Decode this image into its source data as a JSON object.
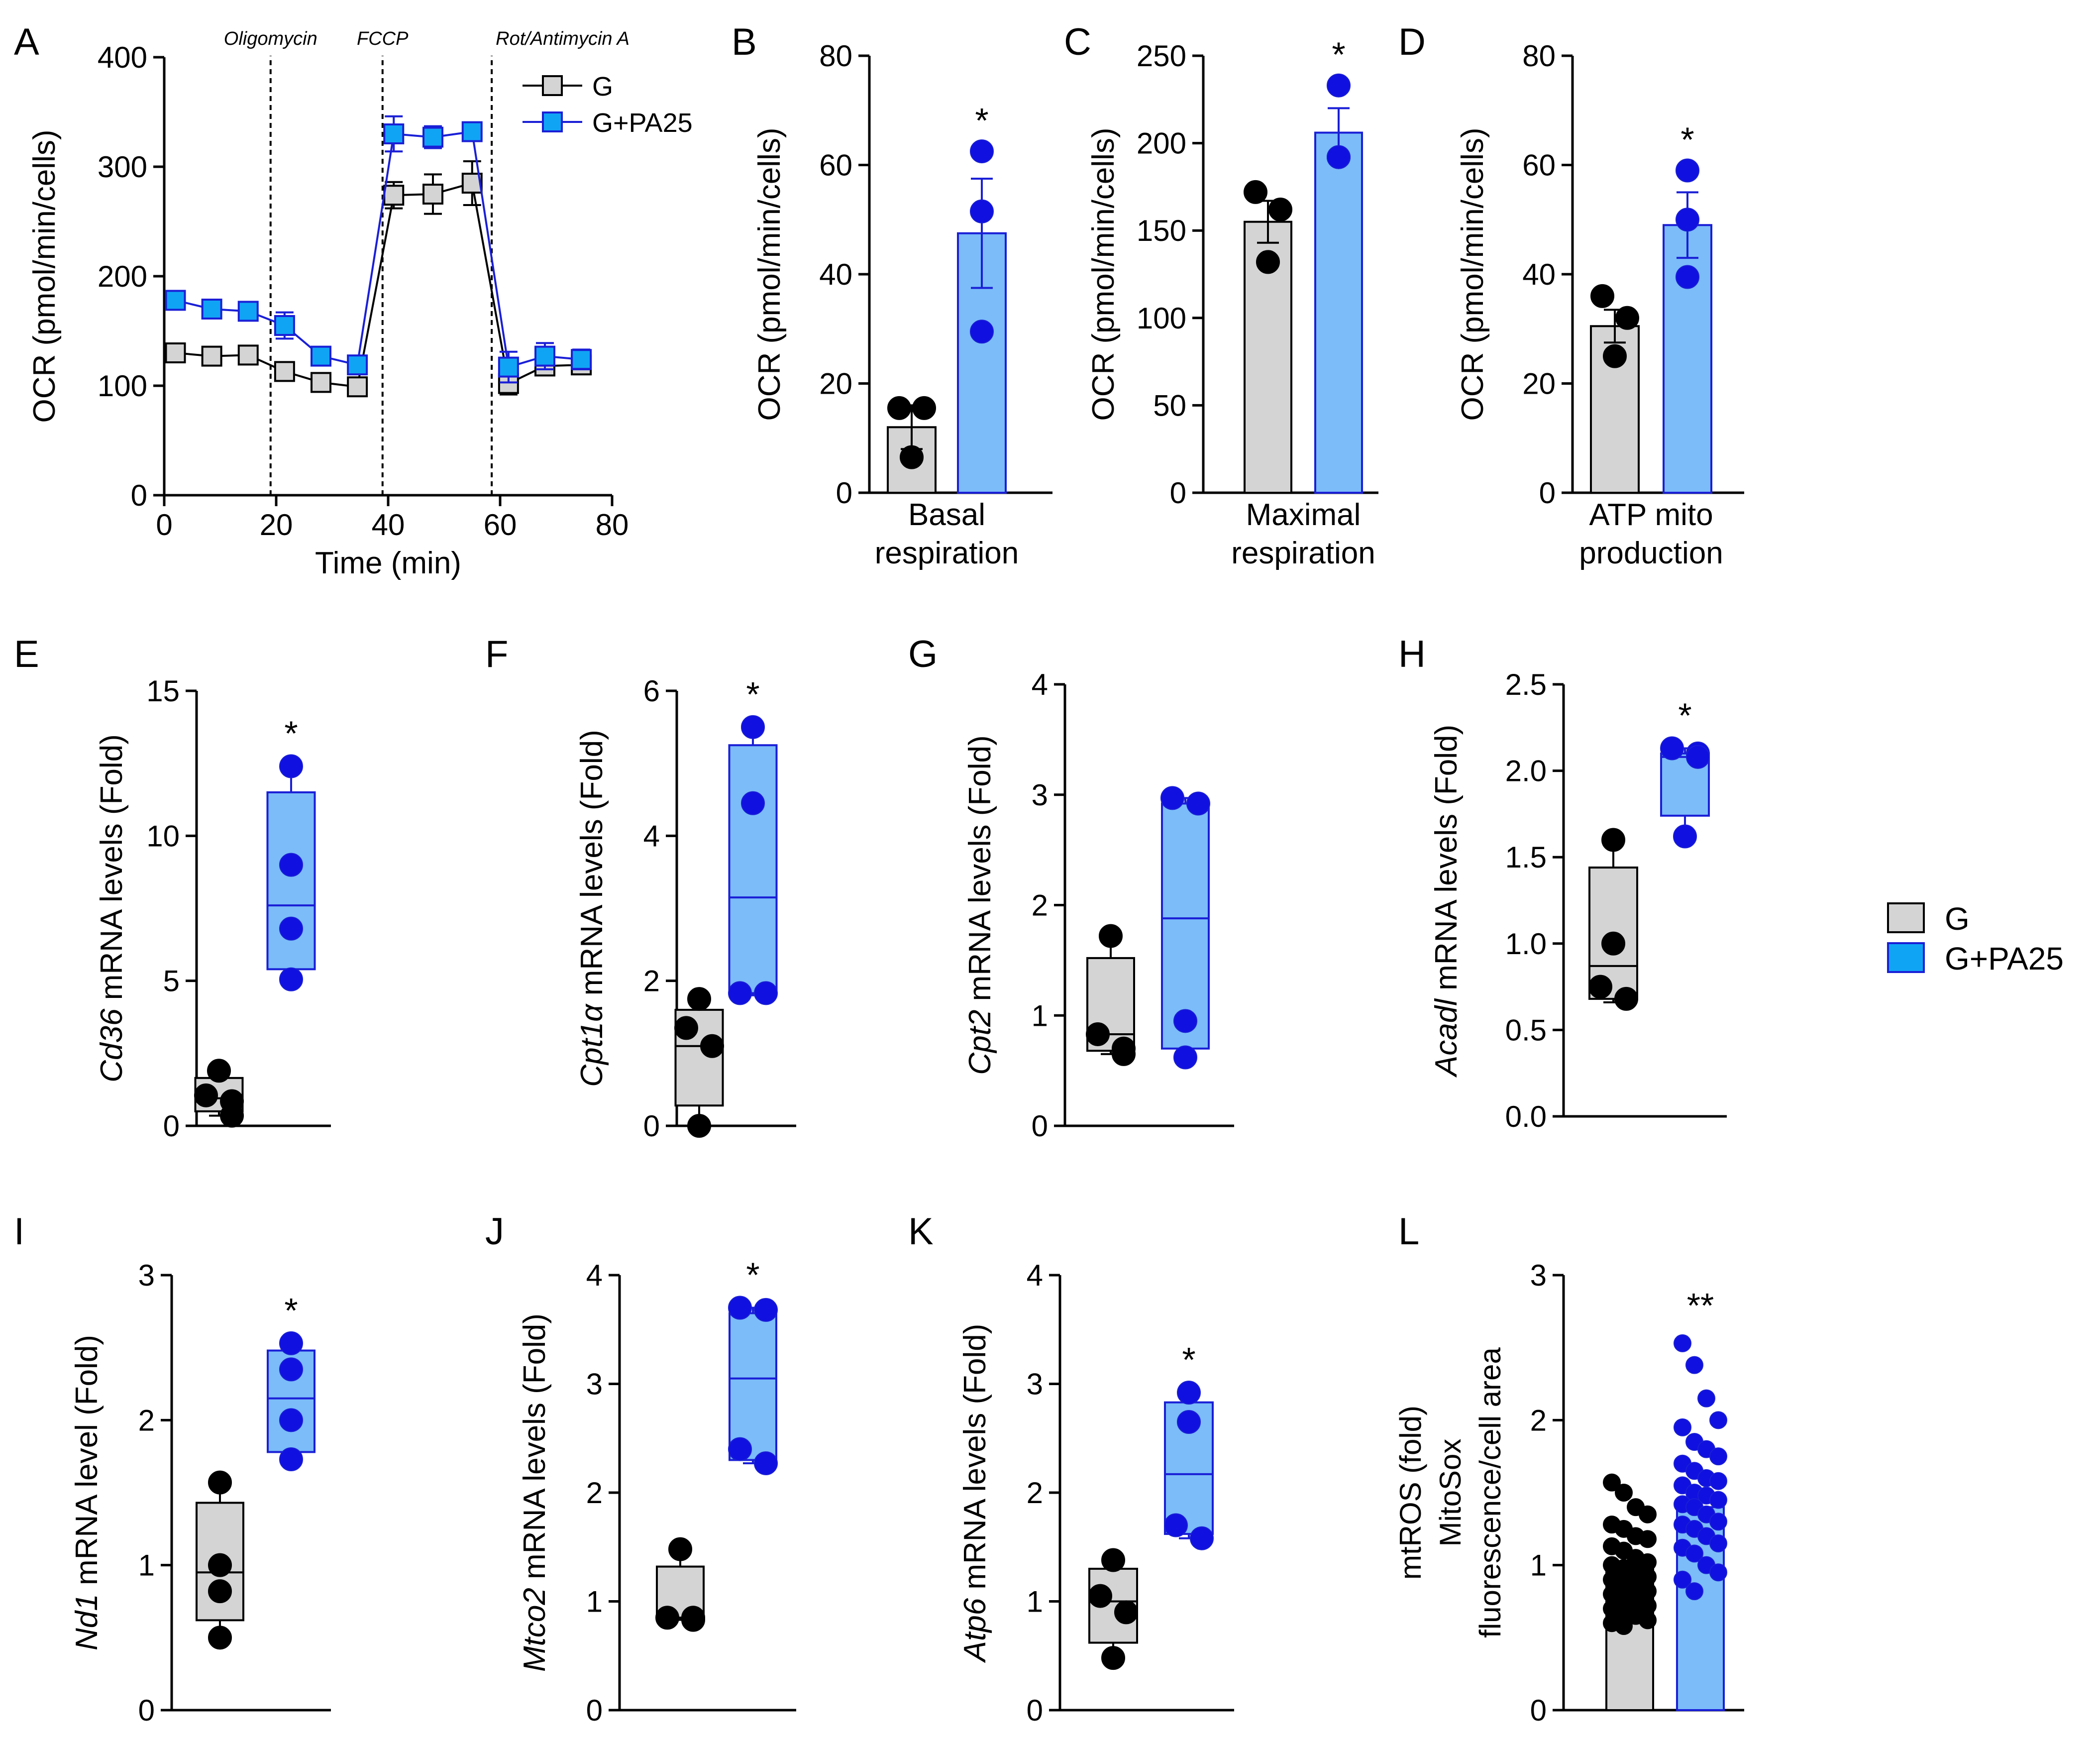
{
  "legend": {
    "g_label": "G",
    "pa_label": "G+PA25"
  },
  "colors": {
    "g_fill": "#d4d4d4",
    "pa_fill": "#7bbcf9",
    "pa_line": "#1a1fd6",
    "pa_marker": "#10a4f5",
    "pa_dot": "#1010e0",
    "black": "#000000"
  },
  "chart_data": [
    {
      "id": "A",
      "type": "line",
      "panel_letter": "A",
      "ylabel": "OCR (pmol/min/cells)",
      "xlabel": "Time (min)",
      "xlim": [
        0,
        80
      ],
      "ylim": [
        0,
        400
      ],
      "xticks": [
        0,
        20,
        40,
        60,
        80
      ],
      "yticks": [
        0,
        100,
        200,
        300,
        400
      ],
      "injections": [
        {
          "label": "Oligomycin",
          "x": 19
        },
        {
          "label": "FCCP",
          "x": 39
        },
        {
          "label": "Rot/Antimycin A",
          "x": 58.5
        }
      ],
      "series": [
        {
          "name": "G",
          "x": [
            2,
            8.5,
            15,
            21.5,
            28,
            34.5,
            41,
            48,
            55,
            61.5,
            68,
            74.5
          ],
          "values": [
            130,
            127,
            128,
            113,
            103,
            99,
            274,
            275,
            285,
            102,
            118,
            119
          ],
          "err": [
            4,
            4,
            4,
            5,
            5,
            5,
            12,
            18,
            20,
            10,
            8,
            8
          ]
        },
        {
          "name": "G+PA25",
          "x": [
            2,
            8.5,
            15,
            21.5,
            28,
            34.5,
            41,
            48,
            55,
            61.5,
            68,
            74.5
          ],
          "values": [
            178,
            170,
            168,
            155,
            127,
            119,
            330,
            327,
            332,
            117,
            127,
            124
          ],
          "err": [
            5,
            5,
            6,
            12,
            6,
            5,
            16,
            10,
            8,
            14,
            12,
            9
          ]
        }
      ]
    },
    {
      "id": "B",
      "type": "bar",
      "panel_letter": "B",
      "ylabel": "OCR (pmol/min/cells)",
      "xlabel_lines": [
        "Basal",
        "respiration"
      ],
      "ylim": [
        0,
        80
      ],
      "yticks": [
        0,
        20,
        40,
        60,
        80
      ],
      "significance": "*",
      "groups": [
        {
          "name": "G",
          "mean": 12,
          "err": 4,
          "points": [
            15.5,
            15.5,
            6.5
          ]
        },
        {
          "name": "G+PA25",
          "mean": 47.5,
          "err": 10,
          "points": [
            62.5,
            51.5,
            29.5
          ]
        }
      ]
    },
    {
      "id": "C",
      "type": "bar",
      "panel_letter": "C",
      "ylabel": "OCR (pmol/min/cells)",
      "xlabel_lines": [
        "Maximal",
        "respiration"
      ],
      "ylim": [
        0,
        250
      ],
      "yticks": [
        0,
        50,
        100,
        150,
        200,
        250
      ],
      "significance": "*",
      "groups": [
        {
          "name": "G",
          "mean": 155,
          "err": 12,
          "points": [
            172,
            162,
            132
          ]
        },
        {
          "name": "G+PA25",
          "mean": 206,
          "err": 14,
          "points": [
            233,
            192,
            192
          ]
        }
      ]
    },
    {
      "id": "D",
      "type": "bar",
      "panel_letter": "D",
      "ylabel": "OCR (pmol/min/cells)",
      "xlabel_lines": [
        "ATP mito",
        "production"
      ],
      "ylim": [
        0,
        80
      ],
      "yticks": [
        0,
        20,
        40,
        60,
        80
      ],
      "significance": "*",
      "groups": [
        {
          "name": "G",
          "mean": 30.5,
          "err": 3,
          "points": [
            36,
            32,
            25
          ]
        },
        {
          "name": "G+PA25",
          "mean": 49,
          "err": 6,
          "points": [
            59,
            50,
            39.5
          ]
        }
      ]
    },
    {
      "id": "E",
      "type": "box",
      "panel_letter": "E",
      "gene": "Cd36",
      "ylabel_rest": " mRNA levels (Fold)",
      "ylim": [
        0,
        15
      ],
      "yticks": [
        0,
        5,
        10,
        15
      ],
      "significance": "*",
      "groups": [
        {
          "name": "G",
          "min": 0.35,
          "q1": 0.5,
          "median": 0.95,
          "q3": 1.65,
          "max": 1.9,
          "points": [
            1.9,
            1.05,
            0.85,
            0.35
          ]
        },
        {
          "name": "G+PA25",
          "min": 5.0,
          "q1": 5.4,
          "median": 7.6,
          "q3": 11.5,
          "max": 12.4,
          "points": [
            12.4,
            9.0,
            6.8,
            5.05
          ]
        }
      ]
    },
    {
      "id": "F",
      "type": "box",
      "panel_letter": "F",
      "gene": "Cpt1α",
      "ylabel_rest": " mRNA levels (Fold)",
      "ylim": [
        0,
        6
      ],
      "yticks": [
        0,
        2,
        4,
        6
      ],
      "significance": "*",
      "groups": [
        {
          "name": "G",
          "min": 0.0,
          "q1": 0.28,
          "median": 1.1,
          "q3": 1.6,
          "max": 1.75,
          "points": [
            1.75,
            1.35,
            1.1,
            0.0
          ]
        },
        {
          "name": "G+PA25",
          "min": 1.8,
          "q1": 1.83,
          "median": 3.15,
          "q3": 5.25,
          "max": 5.5,
          "points": [
            5.5,
            4.45,
            1.83,
            1.83
          ]
        }
      ]
    },
    {
      "id": "G",
      "type": "box",
      "panel_letter": "G",
      "gene": "Cpt2",
      "ylabel_rest": " mRNA levels (Fold)",
      "ylim": [
        0,
        4
      ],
      "yticks": [
        0,
        1,
        2,
        3,
        4
      ],
      "significance": "",
      "groups": [
        {
          "name": "G",
          "min": 0.65,
          "q1": 0.68,
          "median": 0.83,
          "q3": 1.52,
          "max": 1.72,
          "points": [
            1.72,
            0.83,
            0.7,
            0.65
          ]
        },
        {
          "name": "G+PA25",
          "min": 0.62,
          "q1": 0.7,
          "median": 1.88,
          "q3": 2.92,
          "max": 2.97,
          "points": [
            2.97,
            2.92,
            0.95,
            0.62
          ]
        }
      ]
    },
    {
      "id": "H",
      "type": "box",
      "panel_letter": "H",
      "gene": "Acadl",
      "ylabel_rest": " mRNA levels (Fold)",
      "ylim": [
        0,
        2.5
      ],
      "yticks": [
        0.0,
        0.5,
        1.0,
        1.5,
        2.0,
        2.5
      ],
      "ytick_decimals": 1,
      "significance": "*",
      "groups": [
        {
          "name": "G",
          "min": 0.66,
          "q1": 0.68,
          "median": 0.87,
          "q3": 1.44,
          "max": 1.6,
          "points": [
            1.6,
            1.0,
            0.75,
            0.68
          ]
        },
        {
          "name": "G+PA25",
          "min": 1.62,
          "q1": 1.74,
          "median": 2.08,
          "q3": 2.1,
          "max": 2.13,
          "points": [
            2.13,
            2.1,
            2.08,
            1.62
          ]
        }
      ]
    },
    {
      "id": "I",
      "type": "box",
      "panel_letter": "I",
      "gene": "Nd1",
      "ylabel_rest": " mRNA level (Fold)",
      "ylim": [
        0,
        3
      ],
      "yticks": [
        0,
        1,
        2,
        3
      ],
      "significance": "*",
      "groups": [
        {
          "name": "G",
          "min": 0.5,
          "q1": 0.62,
          "median": 0.95,
          "q3": 1.43,
          "max": 1.57,
          "points": [
            1.57,
            1.0,
            0.82,
            0.5
          ]
        },
        {
          "name": "G+PA25",
          "min": 1.73,
          "q1": 1.78,
          "median": 2.15,
          "q3": 2.48,
          "max": 2.53,
          "points": [
            2.53,
            2.35,
            2.0,
            1.73
          ]
        }
      ]
    },
    {
      "id": "J",
      "type": "box",
      "panel_letter": "J",
      "gene": "Mtco2",
      "ylabel_rest": " mRNA levels (Fold)",
      "ylim": [
        0,
        4
      ],
      "yticks": [
        0,
        1,
        2,
        3,
        4
      ],
      "significance": "*",
      "groups": [
        {
          "name": "G",
          "min": 0.83,
          "q1": 0.85,
          "median": 0.85,
          "q3": 1.32,
          "max": 1.48,
          "points": [
            1.48,
            0.85,
            0.83,
            0.85
          ]
        },
        {
          "name": "G+PA25",
          "min": 2.27,
          "q1": 2.3,
          "median": 3.05,
          "q3": 3.65,
          "max": 3.7,
          "points": [
            3.7,
            3.68,
            2.4,
            2.27
          ]
        }
      ]
    },
    {
      "id": "K",
      "type": "box",
      "panel_letter": "K",
      "gene": "Atp6",
      "ylabel_rest": " mRNA levels (Fold)",
      "ylim": [
        0,
        4
      ],
      "yticks": [
        0,
        1,
        2,
        3,
        4
      ],
      "significance": "*",
      "groups": [
        {
          "name": "G",
          "min": 0.48,
          "q1": 0.62,
          "median": 1.0,
          "q3": 1.3,
          "max": 1.38,
          "points": [
            1.38,
            1.05,
            0.9,
            0.48
          ]
        },
        {
          "name": "G+PA25",
          "min": 1.58,
          "q1": 1.62,
          "median": 2.17,
          "q3": 2.83,
          "max": 2.92,
          "points": [
            2.92,
            2.65,
            1.7,
            1.58
          ]
        }
      ]
    },
    {
      "id": "L",
      "type": "bar-scatter",
      "panel_letter": "L",
      "ylabel_lines": [
        "mtROS (fold)",
        "MitoSox",
        "fluorescence/cell area"
      ],
      "ylim": [
        0,
        3
      ],
      "yticks": [
        0,
        1,
        2,
        3
      ],
      "significance": "**",
      "groups": [
        {
          "name": "G",
          "mean": 1.0,
          "points": [
            1.57,
            1.5,
            1.4,
            1.35,
            1.28,
            1.25,
            1.2,
            1.18,
            1.13,
            1.1,
            1.05,
            1.02,
            1.0,
            0.98,
            0.95,
            0.92,
            0.9,
            0.87,
            0.85,
            0.82,
            0.8,
            0.78,
            0.75,
            0.72,
            0.7,
            0.68,
            0.65,
            0.62,
            0.6,
            0.58
          ]
        },
        {
          "name": "G+PA25",
          "mean": 1.4,
          "points": [
            2.53,
            2.38,
            2.15,
            2.0,
            1.95,
            1.85,
            1.8,
            1.75,
            1.7,
            1.65,
            1.6,
            1.58,
            1.55,
            1.5,
            1.48,
            1.45,
            1.42,
            1.4,
            1.35,
            1.3,
            1.28,
            1.25,
            1.2,
            1.15,
            1.12,
            1.08,
            1.0,
            0.95,
            0.9,
            0.82
          ]
        }
      ]
    }
  ]
}
